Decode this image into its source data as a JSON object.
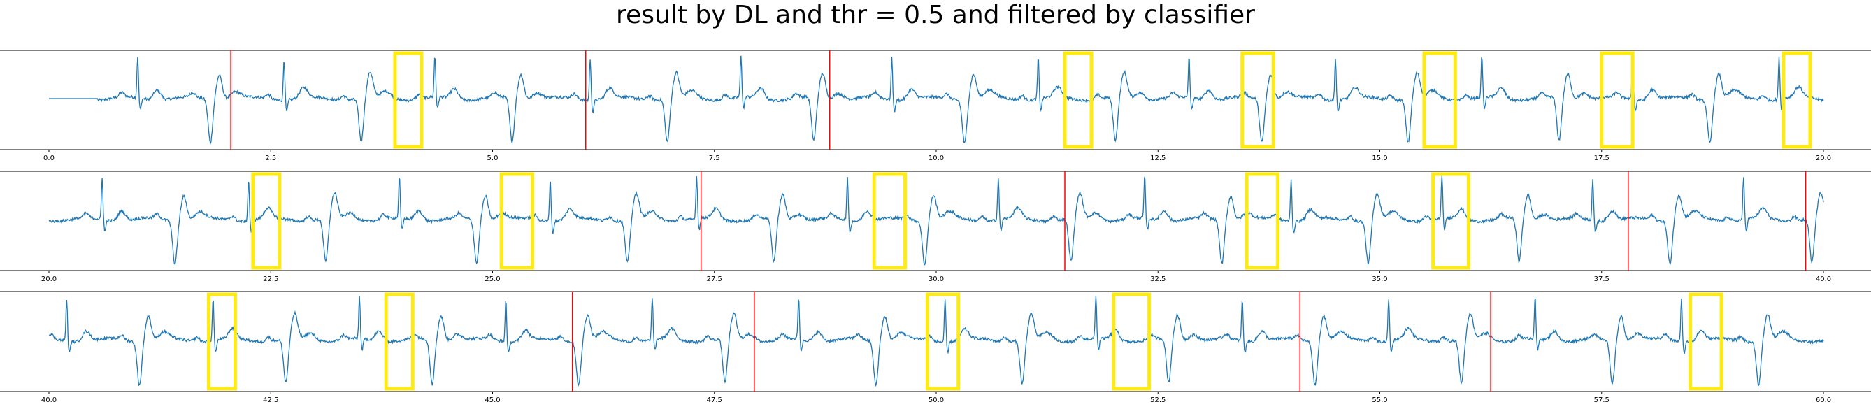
{
  "title": "result by DL and thr = 0.5 and filtered by classifier",
  "colors": {
    "signal": "#1f77b4",
    "red_marker": "#ff0000",
    "yellow_box": "#ffeb14",
    "axis": "#000000"
  },
  "chart_data": [
    {
      "type": "line",
      "xlim": [
        0.0,
        20.0
      ],
      "ticks": [
        0.0,
        2.5,
        5.0,
        7.5,
        10.0,
        12.5,
        15.0,
        17.5,
        20.0
      ],
      "tick_labels": [
        "0.0",
        "2.5",
        "5.0",
        "7.5",
        "10.0",
        "12.5",
        "15.0",
        "17.5",
        "20.0"
      ],
      "red_lines": [
        2.05,
        6.05,
        8.8
      ],
      "yellow_boxes": [
        [
          3.9,
          4.2
        ],
        [
          11.45,
          11.75
        ],
        [
          13.45,
          13.8
        ],
        [
          15.5,
          15.85
        ],
        [
          17.5,
          17.85
        ],
        [
          19.55,
          19.85
        ]
      ],
      "ecg_beats": [
        1.0,
        1.8,
        2.65,
        3.5,
        4.35,
        5.2,
        6.1,
        6.95,
        7.8,
        8.6,
        9.5,
        10.3,
        11.15,
        12.0,
        12.85,
        13.65,
        14.5,
        15.3,
        16.15,
        17.0,
        17.85,
        18.7,
        19.5
      ],
      "flat_until": 0.55
    },
    {
      "type": "line",
      "xlim": [
        20.0,
        40.0
      ],
      "ticks": [
        20.0,
        22.5,
        25.0,
        27.5,
        30.0,
        32.5,
        35.0,
        37.5,
        40.0
      ],
      "tick_labels": [
        "20.0",
        "22.5",
        "25.0",
        "27.5",
        "30.0",
        "32.5",
        "35.0",
        "37.5",
        "40.0"
      ],
      "red_lines": [
        27.35,
        31.45,
        37.8,
        39.8
      ],
      "yellow_boxes": [
        [
          22.3,
          22.6
        ],
        [
          25.1,
          25.45
        ],
        [
          29.3,
          29.65
        ],
        [
          33.5,
          33.85
        ],
        [
          35.6,
          36.0
        ]
      ],
      "ecg_beats": [
        20.6,
        21.4,
        22.25,
        23.1,
        23.95,
        24.8,
        25.65,
        26.5,
        27.3,
        28.15,
        29.0,
        29.85,
        30.7,
        31.5,
        32.35,
        33.2,
        34.0,
        34.85,
        35.7,
        36.55,
        37.4,
        38.25,
        39.1,
        39.85
      ],
      "flat_until": 0
    },
    {
      "type": "line",
      "xlim": [
        40.0,
        60.0
      ],
      "ticks": [
        40.0,
        42.5,
        45.0,
        47.5,
        50.0,
        52.5,
        55.0,
        57.5,
        60.0
      ],
      "tick_labels": [
        "40.0",
        "42.5",
        "45.0",
        "47.5",
        "50.0",
        "52.5",
        "55.0",
        "57.5",
        "60.0"
      ],
      "red_lines": [
        45.9,
        47.95,
        54.1,
        56.25
      ],
      "yellow_boxes": [
        [
          41.8,
          42.1
        ],
        [
          43.8,
          44.1
        ],
        [
          49.9,
          50.25
        ],
        [
          52.0,
          52.4
        ],
        [
          58.5,
          58.85
        ]
      ],
      "ecg_beats": [
        40.2,
        41.0,
        41.85,
        42.65,
        43.5,
        44.3,
        45.15,
        45.95,
        46.8,
        47.6,
        48.45,
        49.3,
        50.1,
        50.95,
        51.8,
        52.6,
        53.45,
        54.25,
        55.1,
        55.9,
        56.75,
        57.6,
        58.4,
        59.25
      ],
      "flat_until": 0
    }
  ]
}
